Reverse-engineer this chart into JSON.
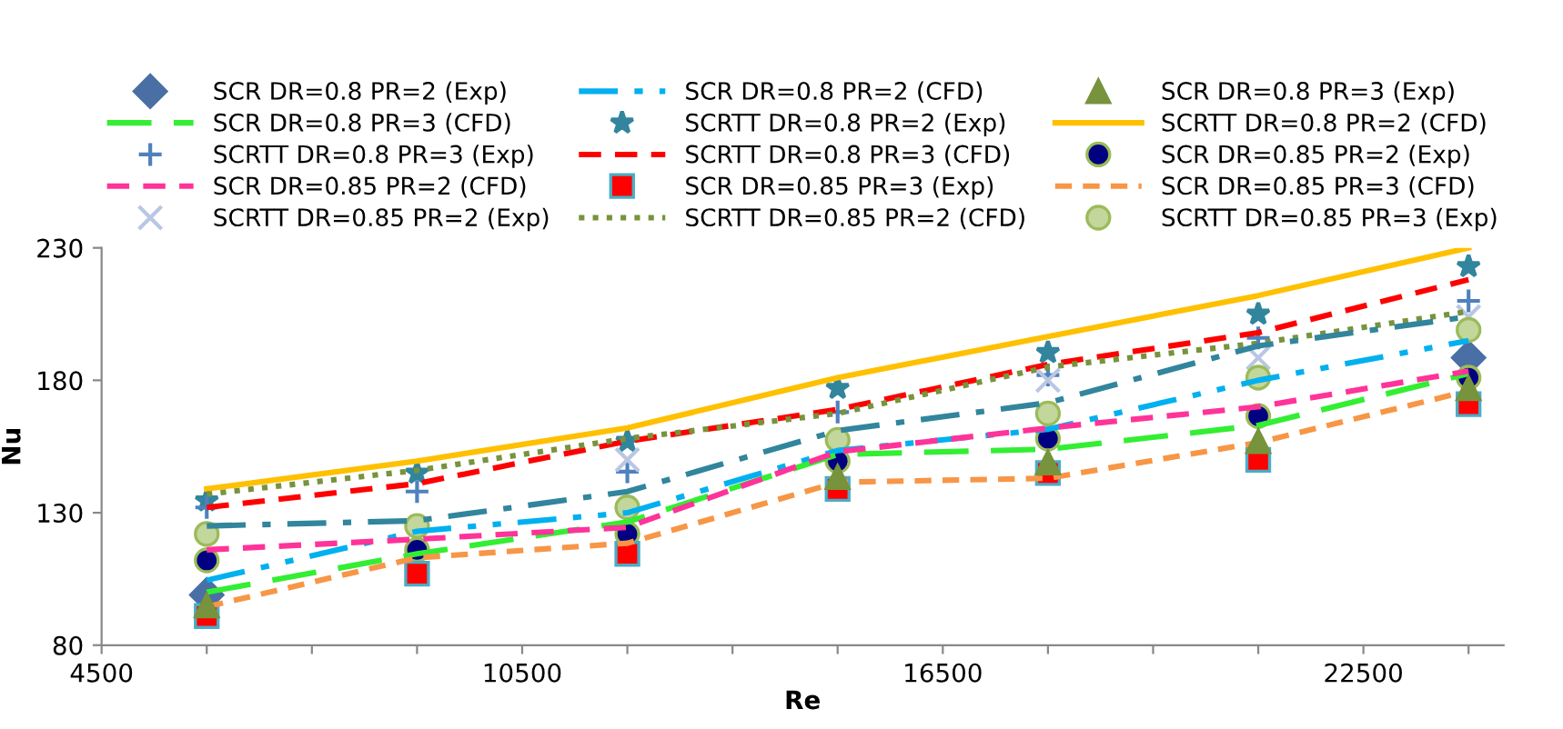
{
  "chart_data": {
    "type": "line",
    "xlabel": "Re",
    "ylabel": "Nu",
    "x": [
      6000,
      9000,
      12000,
      15000,
      18000,
      21000,
      24000
    ],
    "xlim": [
      4500,
      24500
    ],
    "ylim": [
      80,
      230
    ],
    "xticks": [
      4500,
      {
        "value": 6000,
        "label": null
      },
      {
        "value": 7500,
        "label": null
      },
      {
        "value": 9000,
        "label": null
      },
      10500,
      {
        "value": 12000,
        "label": null
      },
      {
        "value": 13500,
        "label": null
      },
      {
        "value": 15000,
        "label": null
      },
      16500,
      {
        "value": 18000,
        "label": null
      },
      {
        "value": 19500,
        "label": null
      },
      {
        "value": 21000,
        "label": null
      },
      22500,
      {
        "value": 24000,
        "label": null
      }
    ],
    "yticks": [
      80,
      130,
      180,
      230
    ],
    "grid": false,
    "legend": "top",
    "series": [
      {
        "name": "SCR DR=0.8 PR=2 (Exp)",
        "type": "scatter",
        "marker": "diamond",
        "color": "#4a6fa5",
        "values": [
          99,
          null,
          null,
          null,
          null,
          null,
          188.5
        ]
      },
      {
        "name": "SCR DR=0.8 PR=2 (CFD)",
        "line_style": "dashdotdot",
        "color": "#00b0f0",
        "values": [
          104.5,
          123,
          130,
          153.5,
          161.5,
          180,
          195
        ]
      },
      {
        "name": "SCR DR=0.8 PR=3 (Exp)",
        "type": "scatter",
        "marker": "triangle",
        "color": "#77933c",
        "values": [
          95,
          null,
          null,
          143.5,
          149,
          157,
          177
        ]
      },
      {
        "name": "SCR DR=0.8 PR=3 (CFD)",
        "line_style": "longdash",
        "color": "#33ee33",
        "values": [
          100,
          114.5,
          126.5,
          152,
          154,
          163,
          182.5
        ]
      },
      {
        "name": "SCRTT DR=0.8 PR=2 (Exp)",
        "type": "scatter",
        "marker": "star",
        "color": "#31859c",
        "values": [
          134.5,
          145,
          157,
          177,
          190.5,
          205,
          223
        ]
      },
      {
        "name": "SCRTT DR=0.8 PR=2 (CFD)",
        "line_style": "solid",
        "color": "#ffc000",
        "values": [
          139,
          149.5,
          162,
          181,
          196.5,
          212,
          230
        ]
      },
      {
        "name": "SCRTT DR=0.8 PR=3 (Exp)",
        "type": "scatter",
        "marker": "plus",
        "color": "#4f81bd",
        "values": [
          132,
          138,
          145.5,
          168,
          182,
          196,
          210
        ]
      },
      {
        "name": "SCRTT DR=0.8 PR=3 (CFD)",
        "line_style": "dashed",
        "color": "#ff0000",
        "values": [
          132,
          141,
          157,
          169,
          186,
          198,
          218
        ]
      },
      {
        "name": "SCR DR=0.85 PR=2 (Exp)",
        "type": "scatter",
        "marker": "circle",
        "color": "#000080",
        "values": [
          112,
          116,
          122,
          149.5,
          158,
          166.5,
          181
        ]
      },
      {
        "name": "SCR DR=0.85 PR=2 (CFD)",
        "line_style": "dashed",
        "color": "#ff3399",
        "values": [
          116,
          120,
          124.5,
          153,
          162,
          170,
          183.5
        ]
      },
      {
        "name": "SCR DR=0.85 PR=3 (Exp)",
        "type": "scatter",
        "marker": "square",
        "color": "#ff0000",
        "values": [
          91,
          107,
          114.5,
          139,
          145,
          150,
          171
        ]
      },
      {
        "name": "SCR DR=0.85 PR=3 (CFD)",
        "line_style": "shortdash",
        "color": "#f79646",
        "values": [
          94.5,
          113,
          118.5,
          141.5,
          143,
          156.5,
          176
        ]
      },
      {
        "name": "SCRTT DR=0.85 PR=2 (Exp)",
        "type": "scatter",
        "marker": "cross",
        "color": "#b9c7e3",
        "values": [
          null,
          null,
          150,
          null,
          180,
          188.5,
          204
        ]
      },
      {
        "name": "SCRTT DR=0.85 PR=2 (CFD)",
        "line_style": "dotted",
        "color": "#77933c",
        "values": [
          137,
          146,
          158,
          167.5,
          185,
          194,
          206
        ]
      },
      {
        "name": "SCRTT DR=0.85 PR=3 (Exp)",
        "type": "scatter",
        "marker": "circle",
        "color": "#c3d69b",
        "values": [
          122,
          125,
          132,
          157.5,
          167.5,
          181,
          199
        ]
      },
      {
        "line_style": "dashdot",
        "color": "#31859c",
        "values": [
          125,
          127,
          138,
          161,
          171.5,
          193,
          204
        ]
      }
    ]
  }
}
